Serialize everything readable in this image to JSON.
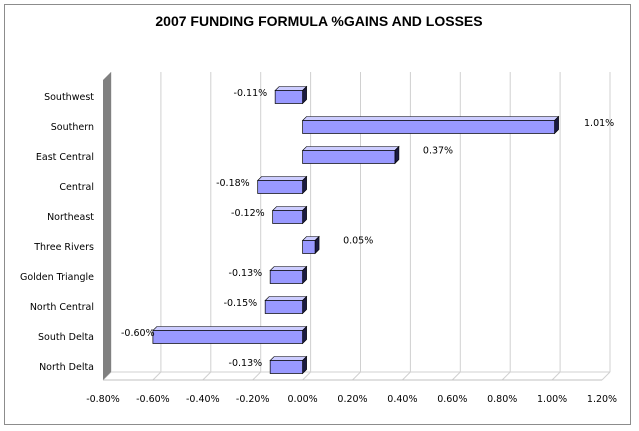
{
  "chart_data": {
    "type": "bar",
    "orientation": "horizontal",
    "title": "2007 FUNDING FORMULA %GAINS AND LOSSES",
    "xlabel": "",
    "ylabel": "",
    "xlim": [
      -0.8,
      1.2
    ],
    "x_ticks": [
      -0.8,
      -0.6,
      -0.4,
      -0.2,
      0.0,
      0.2,
      0.4,
      0.6,
      0.8,
      1.0,
      1.2
    ],
    "x_tick_labels": [
      "-0.80%",
      "-0.60%",
      "-0.40%",
      "-0.20%",
      "0.00%",
      "0.20%",
      "0.40%",
      "0.60%",
      "0.80%",
      "1.00%",
      "1.20%"
    ],
    "grid": true,
    "legend": "none",
    "bar_color": "#9999ff",
    "bar_top_color": "#ccccff",
    "bar_side_color": "#1a1a40",
    "wall_color": "#808080",
    "categories": [
      "Southwest",
      "Southern",
      "East Central",
      "Central",
      "Northeast",
      "Three Rivers",
      "Golden Triangle",
      "North Central",
      "South Delta",
      "North Delta"
    ],
    "values": [
      -0.11,
      1.01,
      0.37,
      -0.18,
      -0.12,
      0.05,
      -0.13,
      -0.15,
      -0.6,
      -0.13
    ],
    "data_labels": [
      "-0.11%",
      "1.01%",
      "0.37%",
      "-0.18%",
      "-0.12%",
      "0.05%",
      "-0.13%",
      "-0.15%",
      "-0.60%",
      "-0.13%"
    ]
  }
}
